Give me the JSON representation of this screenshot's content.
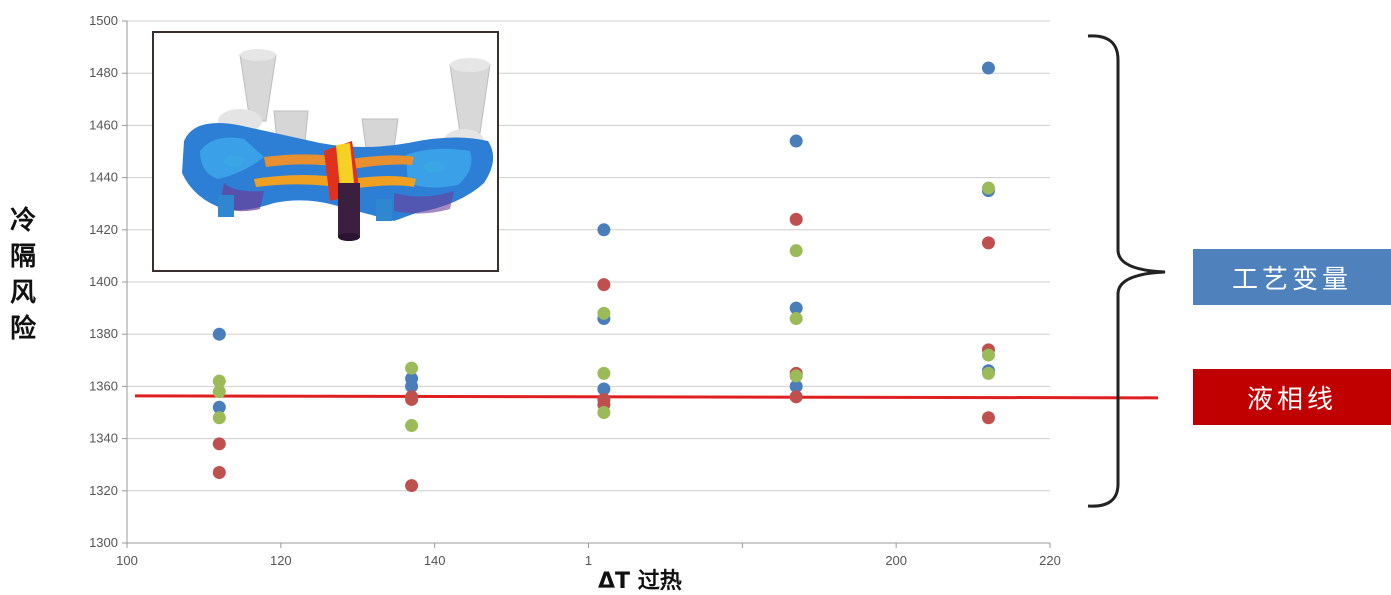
{
  "chart_data": {
    "type": "scatter",
    "xlabel": "ΔT 过热",
    "ylabel": "冷隔风险",
    "xlim": [
      100,
      220
    ],
    "ylim": [
      1300,
      1500
    ],
    "x_ticks": [
      "100",
      "120",
      "140",
      "1",
      "",
      "200",
      "220"
    ],
    "x_tick_values": [
      100,
      120,
      140,
      160,
      180,
      200,
      220
    ],
    "y_ticks": [
      1300,
      1320,
      1340,
      1360,
      1380,
      1400,
      1420,
      1440,
      1460,
      1480,
      1500
    ],
    "grid": "horizontal",
    "series": [
      {
        "color": "#4a7ebb",
        "points": [
          [
            112,
            1380
          ],
          [
            112,
            1352
          ],
          [
            137,
            1363
          ],
          [
            137,
            1360
          ],
          [
            162,
            1420
          ],
          [
            162,
            1386
          ],
          [
            162,
            1359
          ],
          [
            187,
            1454
          ],
          [
            187,
            1390
          ],
          [
            187,
            1360
          ],
          [
            212,
            1482
          ],
          [
            212,
            1435
          ],
          [
            212,
            1366
          ]
        ]
      },
      {
        "color": "#c0504d",
        "points": [
          [
            112,
            1338
          ],
          [
            112,
            1327
          ],
          [
            137,
            1356
          ],
          [
            137,
            1355
          ],
          [
            137,
            1322
          ],
          [
            162,
            1399
          ],
          [
            162,
            1355
          ],
          [
            162,
            1353
          ],
          [
            187,
            1424
          ],
          [
            187,
            1365
          ],
          [
            187,
            1356
          ],
          [
            212,
            1415
          ],
          [
            212,
            1374
          ],
          [
            212,
            1348
          ]
        ]
      },
      {
        "color": "#9bbb59",
        "points": [
          [
            112,
            1362
          ],
          [
            112,
            1358
          ],
          [
            112,
            1348
          ],
          [
            137,
            1367
          ],
          [
            137,
            1345
          ],
          [
            162,
            1388
          ],
          [
            162,
            1365
          ],
          [
            162,
            1350
          ],
          [
            187,
            1412
          ],
          [
            187,
            1386
          ],
          [
            187,
            1364
          ],
          [
            212,
            1436
          ],
          [
            212,
            1372
          ],
          [
            212,
            1365
          ]
        ]
      }
    ],
    "reference_line": {
      "y": 1356,
      "color": "#e02020"
    }
  },
  "legend": {
    "process_variable": {
      "label": "工艺变量",
      "color": "#4f81bd"
    },
    "liquidus": {
      "label": "液相线",
      "color": "#c00000"
    }
  }
}
